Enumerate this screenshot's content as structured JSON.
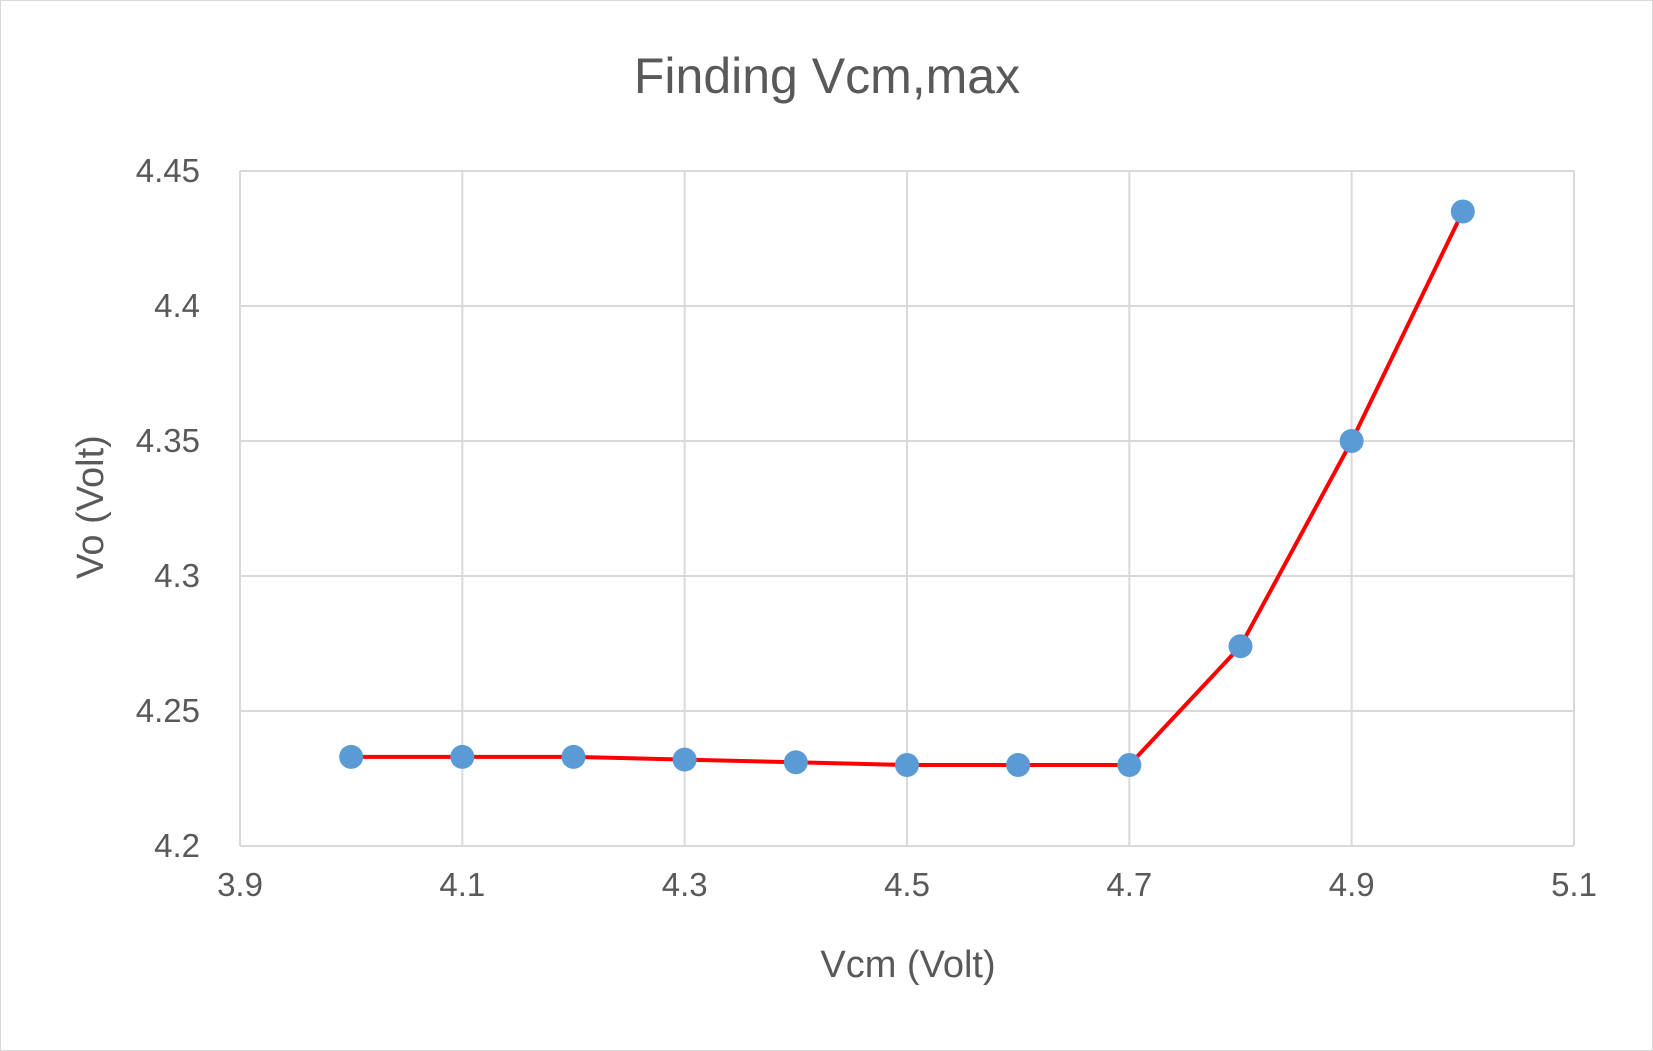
{
  "chart_data": {
    "type": "scatter",
    "title": "Finding Vcm,max",
    "xlabel": "Vcm (Volt)",
    "ylabel": "Vo (Volt)",
    "xlim": [
      3.9,
      5.1
    ],
    "ylim": [
      4.2,
      4.45
    ],
    "x_ticks": [
      "3.9",
      "4.1",
      "4.3",
      "4.5",
      "4.7",
      "4.9",
      "5.1"
    ],
    "y_ticks": [
      "4.2",
      "4.25",
      "4.3",
      "4.35",
      "4.4",
      "4.45"
    ],
    "grid": true,
    "legend": "none",
    "series": [
      {
        "x": [
          4.0,
          4.1,
          4.2,
          4.3,
          4.4,
          4.5,
          4.6,
          4.7,
          4.8,
          4.9,
          5.0
        ],
        "y": [
          4.233,
          4.233,
          4.233,
          4.232,
          4.231,
          4.23,
          4.23,
          4.23,
          4.274,
          4.35,
          4.435
        ],
        "marker_color": "#5b9bd5",
        "line_color": "#ff0000"
      }
    ]
  }
}
